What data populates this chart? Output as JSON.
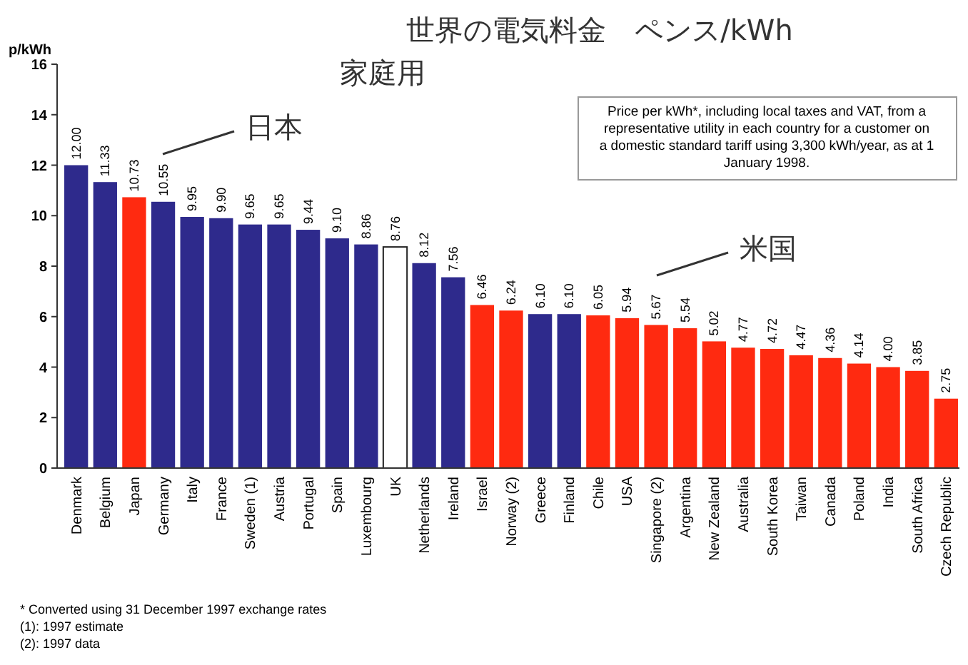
{
  "chart_data": {
    "type": "bar",
    "title": "世界の電気料金　ペンス/kWh",
    "subtitle": "家庭用",
    "ylabel": "p/kWh",
    "categories": [
      "Denmark",
      "Belgium",
      "Japan",
      "Germany",
      "Italy",
      "France",
      "Sweden (1)",
      "Austria",
      "Portugal",
      "Spain",
      "Luxembourg",
      "UK",
      "Netherlands",
      "Ireland",
      "Israel",
      "Norway (2)",
      "Greece",
      "Finland",
      "Chile",
      "USA",
      "Singapore (2)",
      "Argentina",
      "New Zealand",
      "Australia",
      "South Korea",
      "Taiwan",
      "Canada",
      "Poland",
      "India",
      "South Africa",
      "Czech Republic"
    ],
    "values": [
      12.0,
      11.33,
      10.73,
      10.55,
      9.95,
      9.9,
      9.65,
      9.65,
      9.44,
      9.1,
      8.86,
      8.76,
      8.12,
      7.56,
      6.46,
      6.24,
      6.1,
      6.1,
      6.05,
      5.94,
      5.67,
      5.54,
      5.02,
      4.77,
      4.72,
      4.47,
      4.36,
      4.14,
      4.0,
      3.85,
      2.75
    ],
    "colors": [
      "#2e2a8c",
      "#2e2a8c",
      "#ff2a10",
      "#2e2a8c",
      "#2e2a8c",
      "#2e2a8c",
      "#2e2a8c",
      "#2e2a8c",
      "#2e2a8c",
      "#2e2a8c",
      "#2e2a8c",
      "#ffffff",
      "#2e2a8c",
      "#2e2a8c",
      "#ff2a10",
      "#ff2a10",
      "#2e2a8c",
      "#2e2a8c",
      "#ff2a10",
      "#ff2a10",
      "#ff2a10",
      "#ff2a10",
      "#ff2a10",
      "#ff2a10",
      "#ff2a10",
      "#ff2a10",
      "#ff2a10",
      "#ff2a10",
      "#ff2a10",
      "#ff2a10",
      "#ff2a10"
    ],
    "value_labels": [
      "12.00",
      "11.33",
      "10.73",
      "10.55",
      "9.95",
      "9.90",
      "9.65",
      "9.65",
      "9.44",
      "9.10",
      "8.86",
      "8.76",
      "8.12",
      "7.56",
      "6.46",
      "6.24",
      "6.10",
      "6.10",
      "6.05",
      "5.94",
      "5.67",
      "5.54",
      "5.02",
      "4.77",
      "4.72",
      "4.47",
      "4.36",
      "4.14",
      "4.00",
      "3.85",
      "2.75"
    ],
    "ylim": [
      0,
      16
    ],
    "yticks": [
      0,
      2,
      4,
      6,
      8,
      10,
      12,
      14,
      16
    ],
    "grid": false,
    "annotations": [
      "日本",
      "米国",
      "Price per kWh*, including local taxes and VAT, from a representative utility in each country for a customer on a domestic standard tariff using 3,300 kWh/year, as at 1 January 1998.",
      "* Converted using 31 December 1997 exchange rates",
      "(1): 1997 estimate",
      "(2): 1997 data"
    ]
  }
}
